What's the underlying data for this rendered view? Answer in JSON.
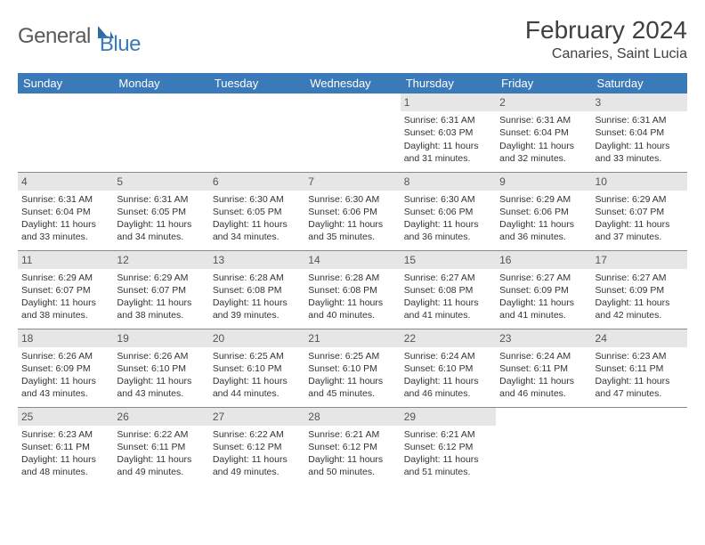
{
  "logo": {
    "text1": "General",
    "text2": "Blue"
  },
  "title": {
    "month": "February 2024",
    "location": "Canaries, Saint Lucia"
  },
  "colors": {
    "header_bg": "#3b7ab8",
    "header_fg": "#ffffff",
    "daynum_bg": "#e6e6e6",
    "text": "#333333",
    "divider": "#8a8a8a",
    "logo_gray": "#5a5a5a",
    "logo_blue": "#3a7ab8"
  },
  "day_headers": [
    "Sunday",
    "Monday",
    "Tuesday",
    "Wednesday",
    "Thursday",
    "Friday",
    "Saturday"
  ],
  "weeks": [
    [
      {
        "num": "",
        "sunrise": "",
        "sunset": "",
        "daylight": ""
      },
      {
        "num": "",
        "sunrise": "",
        "sunset": "",
        "daylight": ""
      },
      {
        "num": "",
        "sunrise": "",
        "sunset": "",
        "daylight": ""
      },
      {
        "num": "",
        "sunrise": "",
        "sunset": "",
        "daylight": ""
      },
      {
        "num": "1",
        "sunrise": "Sunrise: 6:31 AM",
        "sunset": "Sunset: 6:03 PM",
        "daylight": "Daylight: 11 hours and 31 minutes."
      },
      {
        "num": "2",
        "sunrise": "Sunrise: 6:31 AM",
        "sunset": "Sunset: 6:04 PM",
        "daylight": "Daylight: 11 hours and 32 minutes."
      },
      {
        "num": "3",
        "sunrise": "Sunrise: 6:31 AM",
        "sunset": "Sunset: 6:04 PM",
        "daylight": "Daylight: 11 hours and 33 minutes."
      }
    ],
    [
      {
        "num": "4",
        "sunrise": "Sunrise: 6:31 AM",
        "sunset": "Sunset: 6:04 PM",
        "daylight": "Daylight: 11 hours and 33 minutes."
      },
      {
        "num": "5",
        "sunrise": "Sunrise: 6:31 AM",
        "sunset": "Sunset: 6:05 PM",
        "daylight": "Daylight: 11 hours and 34 minutes."
      },
      {
        "num": "6",
        "sunrise": "Sunrise: 6:30 AM",
        "sunset": "Sunset: 6:05 PM",
        "daylight": "Daylight: 11 hours and 34 minutes."
      },
      {
        "num": "7",
        "sunrise": "Sunrise: 6:30 AM",
        "sunset": "Sunset: 6:06 PM",
        "daylight": "Daylight: 11 hours and 35 minutes."
      },
      {
        "num": "8",
        "sunrise": "Sunrise: 6:30 AM",
        "sunset": "Sunset: 6:06 PM",
        "daylight": "Daylight: 11 hours and 36 minutes."
      },
      {
        "num": "9",
        "sunrise": "Sunrise: 6:29 AM",
        "sunset": "Sunset: 6:06 PM",
        "daylight": "Daylight: 11 hours and 36 minutes."
      },
      {
        "num": "10",
        "sunrise": "Sunrise: 6:29 AM",
        "sunset": "Sunset: 6:07 PM",
        "daylight": "Daylight: 11 hours and 37 minutes."
      }
    ],
    [
      {
        "num": "11",
        "sunrise": "Sunrise: 6:29 AM",
        "sunset": "Sunset: 6:07 PM",
        "daylight": "Daylight: 11 hours and 38 minutes."
      },
      {
        "num": "12",
        "sunrise": "Sunrise: 6:29 AM",
        "sunset": "Sunset: 6:07 PM",
        "daylight": "Daylight: 11 hours and 38 minutes."
      },
      {
        "num": "13",
        "sunrise": "Sunrise: 6:28 AM",
        "sunset": "Sunset: 6:08 PM",
        "daylight": "Daylight: 11 hours and 39 minutes."
      },
      {
        "num": "14",
        "sunrise": "Sunrise: 6:28 AM",
        "sunset": "Sunset: 6:08 PM",
        "daylight": "Daylight: 11 hours and 40 minutes."
      },
      {
        "num": "15",
        "sunrise": "Sunrise: 6:27 AM",
        "sunset": "Sunset: 6:08 PM",
        "daylight": "Daylight: 11 hours and 41 minutes."
      },
      {
        "num": "16",
        "sunrise": "Sunrise: 6:27 AM",
        "sunset": "Sunset: 6:09 PM",
        "daylight": "Daylight: 11 hours and 41 minutes."
      },
      {
        "num": "17",
        "sunrise": "Sunrise: 6:27 AM",
        "sunset": "Sunset: 6:09 PM",
        "daylight": "Daylight: 11 hours and 42 minutes."
      }
    ],
    [
      {
        "num": "18",
        "sunrise": "Sunrise: 6:26 AM",
        "sunset": "Sunset: 6:09 PM",
        "daylight": "Daylight: 11 hours and 43 minutes."
      },
      {
        "num": "19",
        "sunrise": "Sunrise: 6:26 AM",
        "sunset": "Sunset: 6:10 PM",
        "daylight": "Daylight: 11 hours and 43 minutes."
      },
      {
        "num": "20",
        "sunrise": "Sunrise: 6:25 AM",
        "sunset": "Sunset: 6:10 PM",
        "daylight": "Daylight: 11 hours and 44 minutes."
      },
      {
        "num": "21",
        "sunrise": "Sunrise: 6:25 AM",
        "sunset": "Sunset: 6:10 PM",
        "daylight": "Daylight: 11 hours and 45 minutes."
      },
      {
        "num": "22",
        "sunrise": "Sunrise: 6:24 AM",
        "sunset": "Sunset: 6:10 PM",
        "daylight": "Daylight: 11 hours and 46 minutes."
      },
      {
        "num": "23",
        "sunrise": "Sunrise: 6:24 AM",
        "sunset": "Sunset: 6:11 PM",
        "daylight": "Daylight: 11 hours and 46 minutes."
      },
      {
        "num": "24",
        "sunrise": "Sunrise: 6:23 AM",
        "sunset": "Sunset: 6:11 PM",
        "daylight": "Daylight: 11 hours and 47 minutes."
      }
    ],
    [
      {
        "num": "25",
        "sunrise": "Sunrise: 6:23 AM",
        "sunset": "Sunset: 6:11 PM",
        "daylight": "Daylight: 11 hours and 48 minutes."
      },
      {
        "num": "26",
        "sunrise": "Sunrise: 6:22 AM",
        "sunset": "Sunset: 6:11 PM",
        "daylight": "Daylight: 11 hours and 49 minutes."
      },
      {
        "num": "27",
        "sunrise": "Sunrise: 6:22 AM",
        "sunset": "Sunset: 6:12 PM",
        "daylight": "Daylight: 11 hours and 49 minutes."
      },
      {
        "num": "28",
        "sunrise": "Sunrise: 6:21 AM",
        "sunset": "Sunset: 6:12 PM",
        "daylight": "Daylight: 11 hours and 50 minutes."
      },
      {
        "num": "29",
        "sunrise": "Sunrise: 6:21 AM",
        "sunset": "Sunset: 6:12 PM",
        "daylight": "Daylight: 11 hours and 51 minutes."
      },
      {
        "num": "",
        "sunrise": "",
        "sunset": "",
        "daylight": ""
      },
      {
        "num": "",
        "sunrise": "",
        "sunset": "",
        "daylight": ""
      }
    ]
  ]
}
